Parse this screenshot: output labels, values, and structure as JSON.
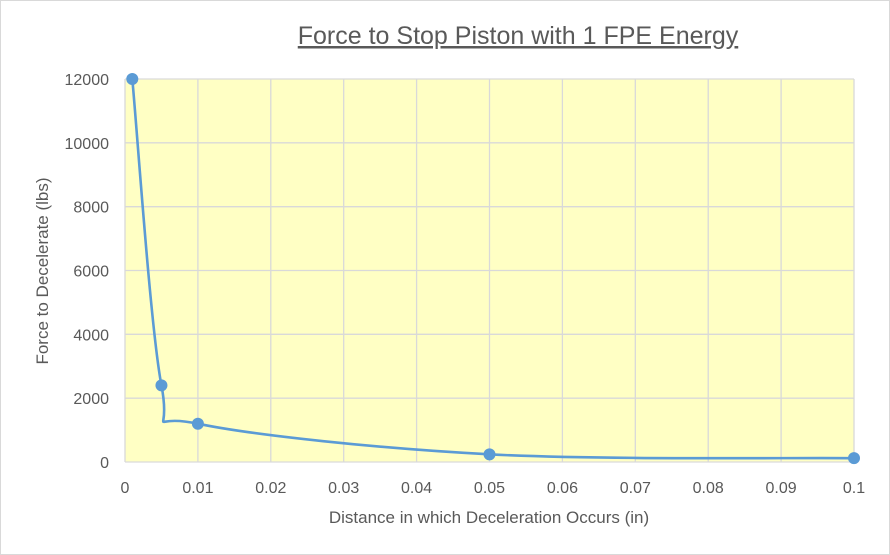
{
  "chart_data": {
    "type": "scatter",
    "title": "Force to Stop Piston with 1 FPE Energy",
    "xlabel": "Distance in which Deceleration Occurs (in)",
    "ylabel": "Force to Decelerate (lbs)",
    "xlim": [
      0,
      0.1
    ],
    "ylim": [
      0,
      12000
    ],
    "xticks": [
      0,
      0.01,
      0.02,
      0.03,
      0.04,
      0.05,
      0.06,
      0.07,
      0.08,
      0.09,
      0.1
    ],
    "xtick_labels": [
      "0",
      "0.01",
      "0.02",
      "0.03",
      "0.04",
      "0.05",
      "0.06",
      "0.07",
      "0.08",
      "0.09",
      "0.1"
    ],
    "yticks": [
      0,
      2000,
      4000,
      6000,
      8000,
      10000,
      12000
    ],
    "ytick_labels": [
      "0",
      "2000",
      "4000",
      "6000",
      "8000",
      "10000",
      "12000"
    ],
    "series": [
      {
        "x": [
          0.001,
          0.005,
          0.01,
          0.05,
          0.1
        ],
        "y": [
          12000,
          2400,
          1200,
          240,
          120
        ],
        "line": "smooth",
        "markers": true
      }
    ],
    "grid": true,
    "legend": "none",
    "colors": {
      "series": "#5b9bd5",
      "plot_background": "#ffffc4",
      "grid": "#d9d9d9",
      "text": "#595959"
    }
  }
}
